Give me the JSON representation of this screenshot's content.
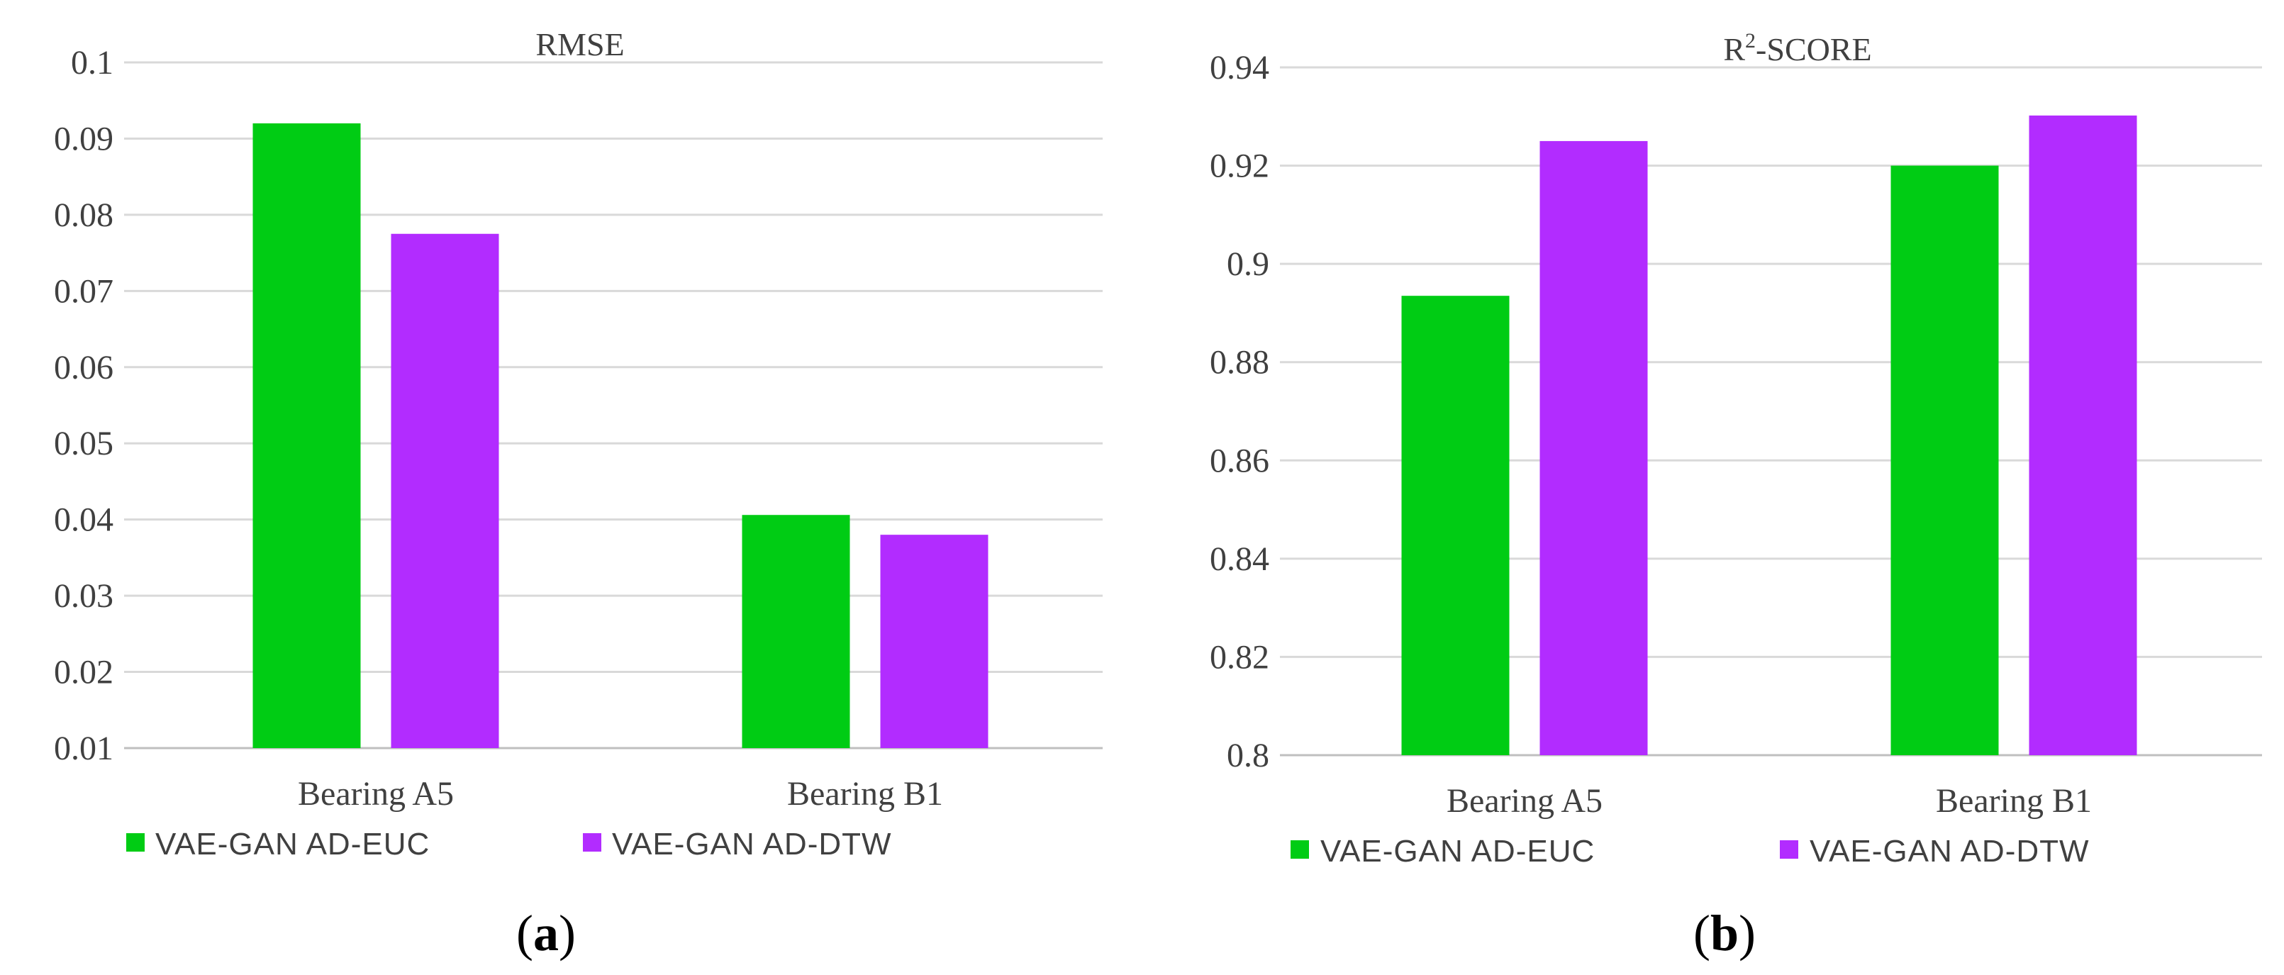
{
  "colors": {
    "euc": "#00cc14",
    "dtw": "#b22cff"
  },
  "chart_data": [
    {
      "type": "bar",
      "title": "RMSE",
      "categories": [
        "Bearing A5",
        "Bearing B1"
      ],
      "series": [
        {
          "name": "VAE-GAN AD-EUC",
          "values": [
            0.092,
            0.0406
          ]
        },
        {
          "name": "VAE-GAN AD-DTW",
          "values": [
            0.0775,
            0.038
          ]
        }
      ],
      "ylim": [
        0.01,
        0.1
      ],
      "yticks": [
        "0.01",
        "0.02",
        "0.03",
        "0.04",
        "0.05",
        "0.06",
        "0.07",
        "0.08",
        "0.09",
        "0.1"
      ],
      "ytick_values": [
        0.01,
        0.02,
        0.03,
        0.04,
        0.05,
        0.06,
        0.07,
        0.08,
        0.09,
        0.1
      ],
      "grid": true,
      "legend": "bottom",
      "panel_label": "a"
    },
    {
      "type": "bar",
      "title": "R2-SCORE",
      "title_base": "R",
      "title_sup": "2",
      "title_rest": "-SCORE",
      "categories": [
        "Bearing A5",
        "Bearing B1"
      ],
      "series": [
        {
          "name": "VAE-GAN AD-EUC",
          "values": [
            0.8935,
            0.92
          ]
        },
        {
          "name": "VAE-GAN AD-DTW",
          "values": [
            0.925,
            0.9302
          ]
        }
      ],
      "ylim": [
        0.8,
        0.94
      ],
      "yticks": [
        "0.8",
        "0.82",
        "0.84",
        "0.86",
        "0.88",
        "0.9",
        "0.92",
        "0.94"
      ],
      "ytick_values": [
        0.8,
        0.82,
        0.84,
        0.86,
        0.88,
        0.9,
        0.92,
        0.94
      ],
      "grid": true,
      "legend": "bottom",
      "panel_label": "b"
    }
  ]
}
